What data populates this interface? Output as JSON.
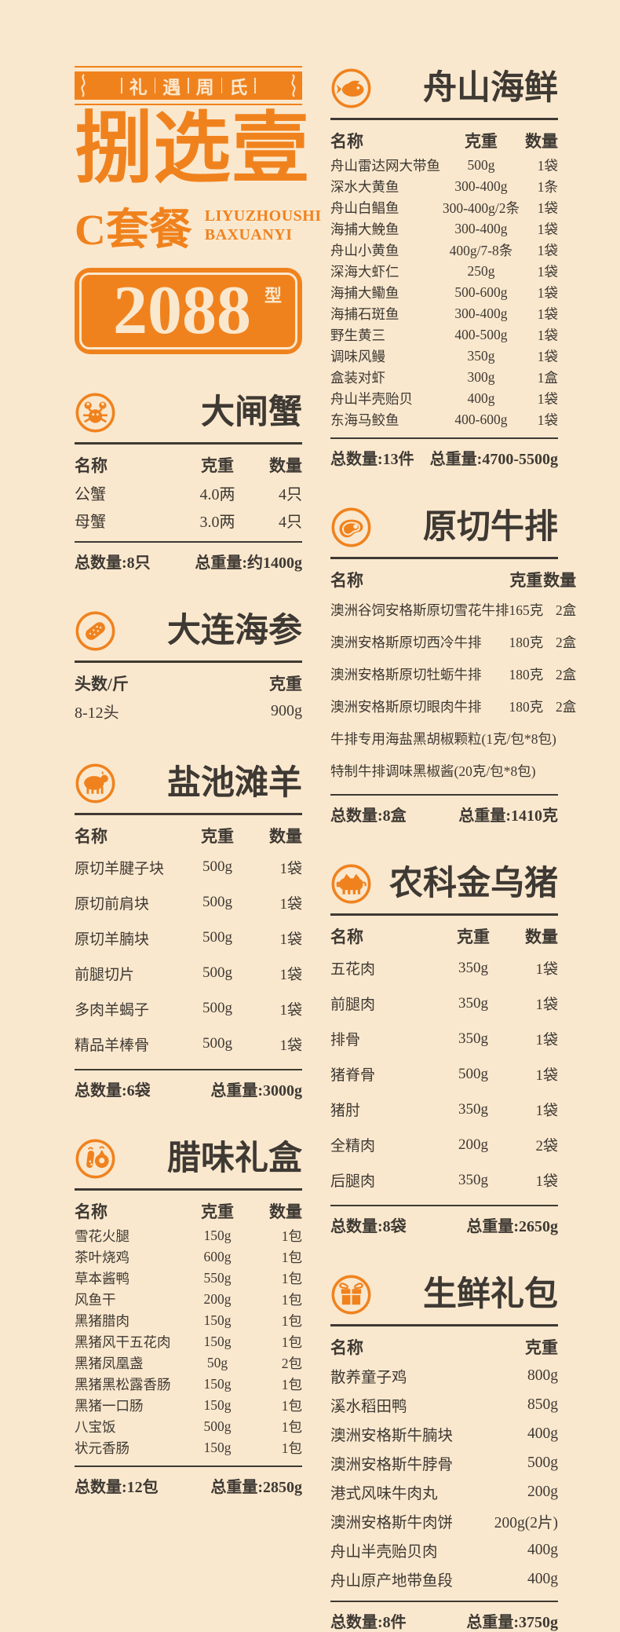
{
  "page": {
    "bg_color": "#FAE8CE",
    "accent_color": "#F0821E",
    "text_color": "#3E3933"
  },
  "header": {
    "banner": "礼遇周氏",
    "title": "捌选壹",
    "subtitle": "C套餐",
    "subtitle_en_line1": "LIYUZHOUSHI",
    "subtitle_en_line2": "BAXUANYI",
    "price": "2088",
    "price_suffix": "型"
  },
  "sections": [
    {
      "icon": "fish-icon",
      "title": "舟山海鲜",
      "columns": [
        "名称",
        "克重",
        "数量"
      ],
      "rows": [
        [
          "舟山雷达网大带鱼",
          "500g",
          "1袋"
        ],
        [
          "深水大黄鱼",
          "300-400g",
          "1条"
        ],
        [
          "舟山白鲳鱼",
          "300-400g/2条",
          "1袋"
        ],
        [
          "海捕大鮸鱼",
          "300-400g",
          "1袋"
        ],
        [
          "舟山小黄鱼",
          "400g/7-8条",
          "1袋"
        ],
        [
          "深海大虾仁",
          "250g",
          "1袋"
        ],
        [
          "海捕大鳓鱼",
          "500-600g",
          "1袋"
        ],
        [
          "海捕石斑鱼",
          "300-400g",
          "1袋"
        ],
        [
          "野生黄三",
          "400-500g",
          "1袋"
        ],
        [
          "调味风鳗",
          "350g",
          "1袋"
        ],
        [
          "盒装对虾",
          "300g",
          "1盒"
        ],
        [
          "舟山半壳贻贝",
          "400g",
          "1袋"
        ],
        [
          "东海马鲛鱼",
          "400-600g",
          "1袋"
        ]
      ],
      "totals": {
        "count": "总数量:13件",
        "weight": "总重量:4700-5500g"
      }
    },
    {
      "icon": "crab-icon",
      "title": "大闸蟹",
      "columns": [
        "名称",
        "克重",
        "数量"
      ],
      "rows": [
        [
          "公蟹",
          "4.0两",
          "4只"
        ],
        [
          "母蟹",
          "3.0两",
          "4只"
        ]
      ],
      "totals": {
        "count": "总数量:8只",
        "weight": "总重量:约1400g"
      }
    },
    {
      "icon": "steak-icon",
      "title": "原切牛排",
      "columns": [
        "名称",
        "克重",
        "数量"
      ],
      "rows": [
        [
          "澳洲谷饲安格斯原切雪花牛排",
          "165克",
          "2盒"
        ],
        [
          "澳洲安格斯原切西冷牛排",
          "180克",
          "2盒"
        ],
        [
          "澳洲安格斯原切牡蛎牛排",
          "180克",
          "2盒"
        ],
        [
          "澳洲安格斯原切眼肉牛排",
          "180克",
          "2盒"
        ]
      ],
      "notes": [
        "牛排专用海盐黑胡椒颗粒(1克/包*8包)",
        "特制牛排调味黑椒酱(20克/包*8包)"
      ],
      "totals": {
        "count": "总数量:8盒",
        "weight": "总重量:1410克"
      }
    },
    {
      "icon": "sea-cucumber-icon",
      "title": "大连海参",
      "columns": [
        "头数/斤",
        "克重"
      ],
      "rows": [
        [
          "8-12头",
          "900g"
        ]
      ],
      "totals": null
    },
    {
      "icon": "sheep-icon",
      "title": "盐池滩羊",
      "columns": [
        "名称",
        "克重",
        "数量"
      ],
      "rows": [
        [
          "原切羊腱子块",
          "500g",
          "1袋"
        ],
        [
          "原切前肩块",
          "500g",
          "1袋"
        ],
        [
          "原切羊腩块",
          "500g",
          "1袋"
        ],
        [
          "前腿切片",
          "500g",
          "1袋"
        ],
        [
          "多肉羊蝎子",
          "500g",
          "1袋"
        ],
        [
          "精品羊棒骨",
          "500g",
          "1袋"
        ]
      ],
      "totals": {
        "count": "总数量:6袋",
        "weight": "总重量:3000g"
      }
    },
    {
      "icon": "pig-icon",
      "title": "农科金乌猪",
      "columns": [
        "名称",
        "克重",
        "数量"
      ],
      "rows": [
        [
          "五花肉",
          "350g",
          "1袋"
        ],
        [
          "前腿肉",
          "350g",
          "1袋"
        ],
        [
          "排骨",
          "350g",
          "1袋"
        ],
        [
          "猪脊骨",
          "500g",
          "1袋"
        ],
        [
          "猪肘",
          "350g",
          "1袋"
        ],
        [
          "全精肉",
          "200g",
          "2袋"
        ],
        [
          "后腿肉",
          "350g",
          "1袋"
        ]
      ],
      "totals": {
        "count": "总数量:8袋",
        "weight": "总重量:2650g"
      }
    },
    {
      "icon": "sausage-icon",
      "title": "腊味礼盒",
      "columns": [
        "名称",
        "克重",
        "数量"
      ],
      "rows": [
        [
          "雪花火腿",
          "150g",
          "1包"
        ],
        [
          "茶叶烧鸡",
          "600g",
          "1包"
        ],
        [
          "草本酱鸭",
          "550g",
          "1包"
        ],
        [
          "风鱼干",
          "200g",
          "1包"
        ],
        [
          "黑猪腊肉",
          "150g",
          "1包"
        ],
        [
          "黑猪风干五花肉",
          "150g",
          "1包"
        ],
        [
          "黑猪凤凰盏",
          "50g",
          "2包"
        ],
        [
          "黑猪黑松露香肠",
          "150g",
          "1包"
        ],
        [
          "黑猪一口肠",
          "150g",
          "1包"
        ],
        [
          "八宝饭",
          "500g",
          "1包"
        ],
        [
          "状元香肠",
          "150g",
          "1包"
        ]
      ],
      "totals": {
        "count": "总数量:12包",
        "weight": "总重量:2850g"
      }
    },
    {
      "icon": "gift-icon",
      "title": "生鲜礼包",
      "columns": [
        "名称",
        "克重"
      ],
      "rows": [
        [
          "散养童子鸡",
          "800g"
        ],
        [
          "溪水稻田鸭",
          "850g"
        ],
        [
          "澳洲安格斯牛腩块",
          "400g"
        ],
        [
          "澳洲安格斯牛脖骨",
          "500g"
        ],
        [
          "港式风味牛肉丸",
          "200g"
        ],
        [
          "澳洲安格斯牛肉饼",
          "200g(2片)"
        ],
        [
          "舟山半壳贻贝肉",
          "400g"
        ],
        [
          "舟山原产地带鱼段",
          "400g"
        ]
      ],
      "totals": {
        "count": "总数量:8件",
        "weight": "总重量:3750g"
      }
    }
  ]
}
